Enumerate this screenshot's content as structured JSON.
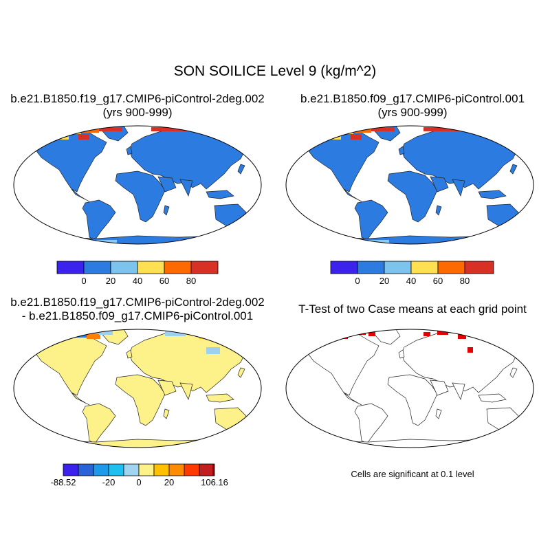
{
  "figure": {
    "title": "SON SOILICE Level 9 (kg/m^2)"
  },
  "panels": [
    {
      "id": "case1",
      "title_line1": "b.e21.B1850.f19_g17.CMIP6-piControl-2deg.002",
      "title_line2": "(yrs 900-999)",
      "land_color": "#2b7be0",
      "high_lat_colors": [
        "#d93025",
        "#ff6a00",
        "#ffe050",
        "#8ecbf0"
      ]
    },
    {
      "id": "case2",
      "title_line1": "b.e21.B1850.f09_g17.CMIP6-piControl.001",
      "title_line2": "(yrs 900-999)",
      "land_color": "#2b7be0",
      "high_lat_colors": [
        "#d93025",
        "#ff6a00",
        "#ffe050",
        "#8ecbf0"
      ]
    },
    {
      "id": "difference",
      "title_line1": "b.e21.B1850.f19_g17.CMIP6-piControl-2deg.002",
      "title_line2": "- b.e21.B1850.f09_g17.CMIP6-piControl.001",
      "land_color": "#fdf28a",
      "high_lat_colors": [
        "#ffc000",
        "#9ed0f0",
        "#2b7be0",
        "#ff8000"
      ]
    },
    {
      "id": "ttest",
      "title_line1": "T-Test of two Case means at each grid point",
      "title_line2": "",
      "land_color": "#ffffff",
      "sig_color": "#e60000",
      "note": "Cells are significant at 0.1 level"
    }
  ],
  "colorbars": {
    "cases": {
      "colors": [
        "#3b22ec",
        "#2b7be0",
        "#7cc4ee",
        "#ffe050",
        "#ff6a00",
        "#d93025"
      ],
      "labels": [
        "0",
        "20",
        "40",
        "60",
        "80"
      ]
    },
    "difference": {
      "colors": [
        "#3b22ec",
        "#2a63d8",
        "#1e9ae8",
        "#1ec0f0",
        "#a0d4f0",
        "#fdf28a",
        "#ffc000",
        "#ff8c00",
        "#ff3a00",
        "#e60000",
        "#c02020"
      ],
      "labels": [
        "-88.52",
        "-20",
        "0",
        "20",
        "106.16"
      ]
    }
  }
}
